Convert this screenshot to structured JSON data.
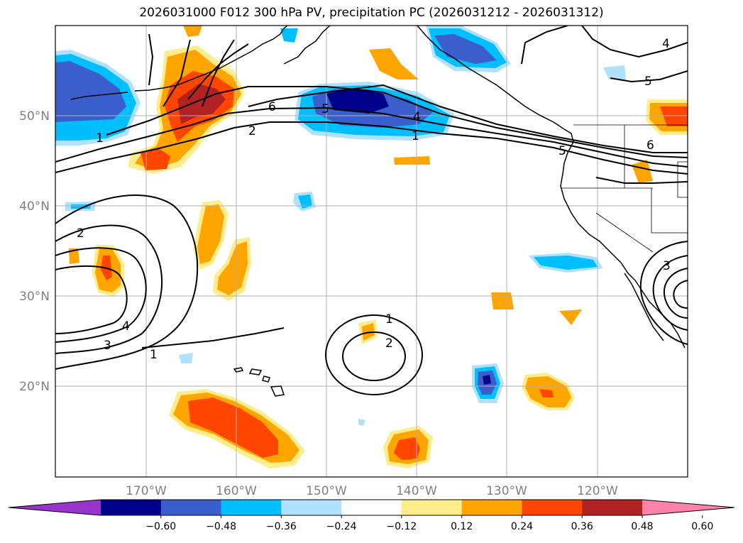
{
  "title": "2026031000 F012 300 hPa PV, precipitation PC (2026031212 - 2026031312)",
  "map": {
    "lon_labels": [
      "170°W",
      "160°W",
      "150°W",
      "140°W",
      "130°W",
      "120°W"
    ],
    "lat_labels": [
      "50°N",
      "40°N",
      "30°N",
      "20°N"
    ],
    "contour_labels": [
      "1",
      "2",
      "6",
      "5",
      "4",
      "1",
      "2",
      "1",
      "2",
      "3",
      "4",
      "1",
      "4",
      "5",
      "6",
      "3",
      "5"
    ]
  },
  "colorbar": {
    "colors": [
      "#9933cc",
      "#00008b",
      "#3a5fcd",
      "#00bfff",
      "#b0e2ff",
      "#ffffff",
      "#ffec8b",
      "#ffa500",
      "#ff4500",
      "#b22222",
      "#ff82ab"
    ],
    "ticks": [
      "−0.60",
      "−0.48",
      "−0.36",
      "−0.24",
      "−0.12",
      "0.12",
      "0.24",
      "0.36",
      "0.48",
      "0.60"
    ]
  }
}
